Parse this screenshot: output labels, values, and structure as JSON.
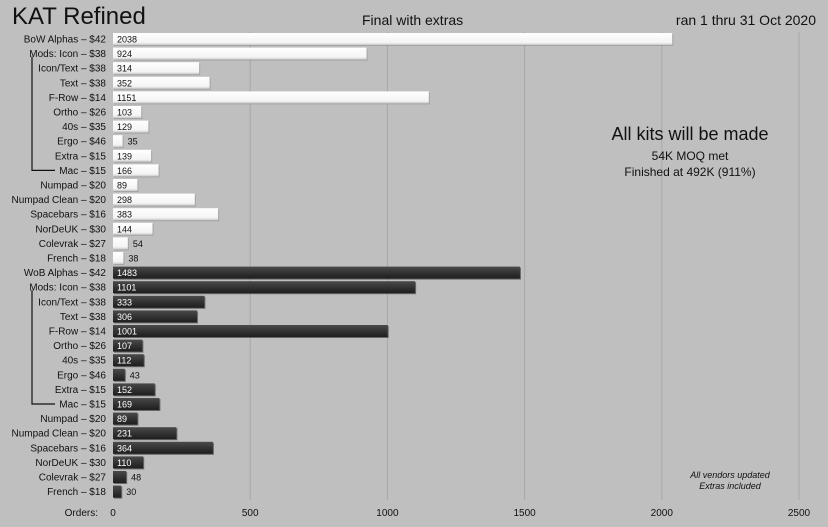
{
  "header": {
    "title": "KAT Refined",
    "subtitle": "Final with extras",
    "date_range": "ran 1 thru 31 Oct 2020"
  },
  "annotations": {
    "headline": "All kits will be made",
    "moq": "54K MOQ met",
    "finished": "Finished at 492K (911%)",
    "note_line1": "All vendors updated",
    "note_line2": "Extras included"
  },
  "colors": {
    "background": "#bfbfc0",
    "bow_bar": "#ffffff",
    "wob_bar": "#333333",
    "grid": "#a8a8a8"
  },
  "chart_data": {
    "type": "bar",
    "orientation": "horizontal",
    "title": "Final with extras",
    "xlabel": "Orders:",
    "xlim": [
      0,
      2500
    ],
    "xticks": [
      0,
      500,
      1000,
      1500,
      2000,
      2500
    ],
    "grid": true,
    "categories": [
      "BoW Alphas – $42",
      "Mods:  Icon – $38",
      "Icon/Text – $38",
      "Text – $38",
      "F-Row – $14",
      "Ortho – $26",
      "40s – $35",
      "Ergo – $46",
      "Extra – $15",
      "Mac – $15",
      "Numpad – $20",
      "Numpad Clean – $20",
      "Spacebars – $16",
      "NorDeUK – $30",
      "Colevrak – $27",
      "French – $18",
      "WoB Alphas – $42",
      "Mods:  Icon – $38",
      "Icon/Text – $38",
      "Text – $38",
      "F-Row – $14",
      "Ortho – $26",
      "40s – $35",
      "Ergo – $46",
      "Extra – $15",
      "Mac – $15",
      "Numpad – $20",
      "Numpad Clean – $20",
      "Spacebars – $16",
      "NorDeUK – $30",
      "Colevrak – $27",
      "French – $18"
    ],
    "values": [
      2038,
      924,
      314,
      352,
      1151,
      103,
      129,
      35,
      139,
      166,
      89,
      298,
      383,
      144,
      54,
      38,
      1483,
      1101,
      333,
      306,
      1001,
      107,
      112,
      43,
      152,
      169,
      89,
      231,
      364,
      110,
      48,
      30
    ],
    "series_group": [
      "BoW",
      "BoW",
      "BoW",
      "BoW",
      "BoW",
      "BoW",
      "BoW",
      "BoW",
      "BoW",
      "BoW",
      "BoW",
      "BoW",
      "BoW",
      "BoW",
      "BoW",
      "BoW",
      "WoB",
      "WoB",
      "WoB",
      "WoB",
      "WoB",
      "WoB",
      "WoB",
      "WoB",
      "WoB",
      "WoB",
      "WoB",
      "WoB",
      "WoB",
      "WoB",
      "WoB",
      "WoB"
    ]
  }
}
